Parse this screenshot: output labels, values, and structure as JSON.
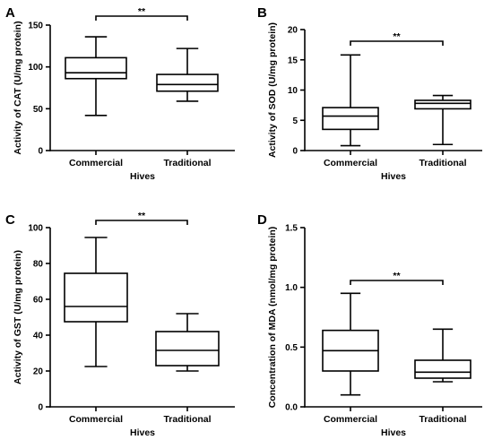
{
  "chart_data": [
    {
      "type": "boxplot",
      "panel_label": "A",
      "xlabel": "Hives",
      "ylabel": "Activity of CAT (U/mg protein)",
      "ylim": [
        0,
        150
      ],
      "yticks": [
        0,
        50,
        100,
        150
      ],
      "categories": [
        "Commercial",
        "Traditional"
      ],
      "boxes": [
        {
          "min": 42,
          "q1": 86,
          "median": 93,
          "q3": 111,
          "max": 136
        },
        {
          "min": 59,
          "q1": 71,
          "median": 79,
          "q3": 91,
          "max": 122
        }
      ],
      "significance": "**"
    },
    {
      "type": "boxplot",
      "panel_label": "B",
      "xlabel": "Hives",
      "ylabel": "Activity of SOD (U/mg protein)",
      "ylim": [
        0,
        20
      ],
      "yticks": [
        0,
        5,
        10,
        15,
        20
      ],
      "categories": [
        "Commercial",
        "Traditional"
      ],
      "boxes": [
        {
          "min": 0.8,
          "q1": 3.5,
          "median": 5.7,
          "q3": 7.1,
          "max": 15.8
        },
        {
          "min": 1.0,
          "q1": 6.9,
          "median": 7.8,
          "q3": 8.3,
          "max": 9.1
        }
      ],
      "significance": "**"
    },
    {
      "type": "boxplot",
      "panel_label": "C",
      "xlabel": "Hives",
      "ylabel": "Activity of GST (U/mg protein)",
      "ylim": [
        0,
        100
      ],
      "yticks": [
        0,
        20,
        40,
        60,
        80,
        100
      ],
      "categories": [
        "Commercial",
        "Traditional"
      ],
      "boxes": [
        {
          "min": 22.5,
          "q1": 47.5,
          "median": 56,
          "q3": 74.5,
          "max": 94.5
        },
        {
          "min": 20,
          "q1": 23,
          "median": 31.5,
          "q3": 42,
          "max": 52
        }
      ],
      "significance": "**"
    },
    {
      "type": "boxplot",
      "panel_label": "D",
      "xlabel": "Hives",
      "ylabel": "Concentration of MDA (nmol/mg protein)",
      "ylim": [
        0,
        1.5
      ],
      "yticks": [
        0.0,
        0.5,
        1.0,
        1.5
      ],
      "ytick_labels": [
        "0.0",
        "0.5",
        "1.0",
        "1.5"
      ],
      "categories": [
        "Commercial",
        "Traditional"
      ],
      "boxes": [
        {
          "min": 0.1,
          "q1": 0.3,
          "median": 0.47,
          "q3": 0.64,
          "max": 0.95
        },
        {
          "min": 0.21,
          "q1": 0.24,
          "median": 0.29,
          "q3": 0.39,
          "max": 0.65
        }
      ],
      "significance": "**"
    }
  ]
}
